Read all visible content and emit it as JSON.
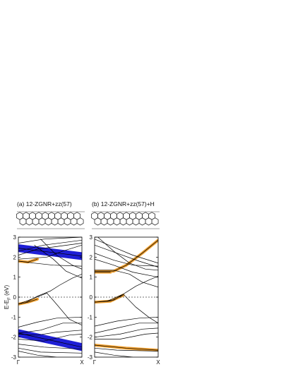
{
  "figure": {
    "panel_a_title": "(a) 12-ZGNR+zz(57)",
    "panel_b_title": "(b) 12-ZGNR+zz(57)+H",
    "ylabel": "E-E",
    "ylabel_sub": "F",
    "ylabel_unit": " (eV)",
    "colors": {
      "bands": "#000000",
      "highlight_blue": "#1f1fd6",
      "highlight_orange": "#f0a030",
      "fermi": "#444444"
    }
  },
  "chart_data": [
    {
      "type": "line",
      "title": "(a) 12-ZGNR+zz(57)",
      "ylim": [
        -3,
        3
      ],
      "yticks": [
        "3",
        "2",
        "1",
        "0",
        "-1",
        "-2",
        "-3"
      ],
      "xticks": [
        "Γ",
        "X"
      ],
      "fermi_level": 0,
      "series": [
        {
          "style": "blue",
          "values": [
            [
              0,
              2.45
            ],
            [
              0.5,
              2.25
            ],
            [
              1,
              2.05
            ]
          ]
        },
        {
          "style": "blue",
          "values": [
            [
              0,
              -1.8
            ],
            [
              0.5,
              -2.15
            ],
            [
              1,
              -2.5
            ]
          ]
        },
        {
          "style": "orange",
          "values": [
            [
              0,
              1.8
            ],
            [
              0.15,
              1.75
            ],
            [
              0.3,
              1.9
            ]
          ]
        },
        {
          "style": "orange",
          "values": [
            [
              0,
              -0.35
            ],
            [
              0.15,
              -0.25
            ],
            [
              0.3,
              -0.1
            ]
          ]
        },
        {
          "values": [
            [
              0,
              2.7
            ],
            [
              0.4,
              2.9
            ],
            [
              1,
              3.0
            ]
          ]
        },
        {
          "values": [
            [
              0,
              2.3
            ],
            [
              0.4,
              2.6
            ],
            [
              1,
              2.85
            ]
          ]
        },
        {
          "values": [
            [
              0,
              2.1
            ],
            [
              0.3,
              2.4
            ],
            [
              1,
              2.7
            ]
          ]
        },
        {
          "values": [
            [
              0,
              1.8
            ],
            [
              0.25,
              1.7
            ],
            [
              0.55,
              1.6
            ],
            [
              1,
              1.55
            ]
          ]
        },
        {
          "values": [
            [
              0,
              1.9
            ],
            [
              0.45,
              2.0
            ],
            [
              0.7,
              2.3
            ],
            [
              1,
              2.6
            ]
          ]
        },
        {
          "values": [
            [
              0.25,
              2.6
            ],
            [
              0.55,
              1.9
            ],
            [
              0.75,
              1.3
            ],
            [
              1,
              0.95
            ]
          ]
        },
        {
          "values": [
            [
              0.35,
              2.9
            ],
            [
              0.6,
              2.1
            ],
            [
              0.85,
              1.6
            ],
            [
              1,
              1.4
            ]
          ]
        },
        {
          "values": [
            [
              0,
              -0.35
            ],
            [
              0.25,
              -0.05
            ],
            [
              0.45,
              0.2
            ],
            [
              0.6,
              -0.35
            ],
            [
              0.8,
              -1.1
            ],
            [
              1,
              -1.4
            ]
          ]
        },
        {
          "values": [
            [
              0.1,
              -0.3
            ],
            [
              0.3,
              0.05
            ],
            [
              0.5,
              0.3
            ],
            [
              0.65,
              0.6
            ],
            [
              0.85,
              0.95
            ],
            [
              1,
              1.15
            ]
          ]
        },
        {
          "values": [
            [
              0,
              -1.5
            ],
            [
              0.3,
              -1.25
            ],
            [
              0.6,
              -1.05
            ],
            [
              1,
              -1.0
            ]
          ]
        },
        {
          "values": [
            [
              0,
              -1.8
            ],
            [
              0.35,
              -1.65
            ],
            [
              0.7,
              -1.3
            ],
            [
              1,
              -1.3
            ]
          ]
        },
        {
          "values": [
            [
              0,
              -1.85
            ],
            [
              0.3,
              -1.9
            ],
            [
              0.6,
              -1.75
            ],
            [
              1,
              -1.65
            ]
          ]
        },
        {
          "values": [
            [
              0,
              -2.1
            ],
            [
              0.4,
              -2.2
            ],
            [
              0.8,
              -1.9
            ],
            [
              1,
              -1.85
            ]
          ]
        },
        {
          "values": [
            [
              0,
              -2.35
            ],
            [
              0.4,
              -2.5
            ],
            [
              1,
              -2.6
            ]
          ]
        },
        {
          "values": [
            [
              0,
              -2.55
            ],
            [
              0.35,
              -2.75
            ],
            [
              1,
              -2.8
            ]
          ]
        },
        {
          "values": [
            [
              0,
              -2.7
            ],
            [
              0.3,
              -2.9
            ],
            [
              0.6,
              -3.0
            ]
          ]
        }
      ]
    },
    {
      "type": "line",
      "title": "(b) 12-ZGNR+zz(57)+H",
      "ylim": [
        -3,
        3
      ],
      "yticks": [
        "3",
        "2",
        "1",
        "0",
        "-1",
        "-2",
        "-3"
      ],
      "xticks": [
        "Γ",
        "X"
      ],
      "fermi_level": 0,
      "series": [
        {
          "style": "orange",
          "values": [
            [
              0,
              1.3
            ],
            [
              0.3,
              1.3
            ],
            [
              0.5,
              1.6
            ],
            [
              0.75,
              2.2
            ],
            [
              1,
              2.85
            ]
          ]
        },
        {
          "style": "orange",
          "values": [
            [
              0,
              1.25
            ],
            [
              0.25,
              1.25
            ]
          ]
        },
        {
          "style": "orange",
          "values": [
            [
              0,
              -0.25
            ],
            [
              0.25,
              -0.2
            ],
            [
              0.45,
              0.1
            ]
          ]
        },
        {
          "style": "orange",
          "values": [
            [
              0,
              -2.4
            ],
            [
              0.5,
              -2.55
            ],
            [
              1,
              -2.65
            ]
          ]
        },
        {
          "values": [
            [
              0,
              2.9
            ],
            [
              0.3,
              2.5
            ],
            [
              0.6,
              2.1
            ],
            [
              1,
              1.7
            ]
          ]
        },
        {
          "values": [
            [
              0,
              2.6
            ],
            [
              0.35,
              2.2
            ],
            [
              0.7,
              1.8
            ],
            [
              1,
              1.5
            ]
          ]
        },
        {
          "values": [
            [
              0,
              2.2
            ],
            [
              0.3,
              1.85
            ],
            [
              0.6,
              1.6
            ],
            [
              1,
              1.55
            ]
          ]
        },
        {
          "values": [
            [
              0,
              1.9
            ],
            [
              0.3,
              1.6
            ],
            [
              0.6,
              1.25
            ],
            [
              1,
              1.0
            ]
          ]
        },
        {
          "values": [
            [
              0.05,
              3.0
            ],
            [
              0.3,
              2.3
            ],
            [
              0.55,
              1.7
            ],
            [
              0.8,
              1.4
            ],
            [
              1,
              1.35
            ]
          ]
        },
        {
          "values": [
            [
              0,
              1.35
            ],
            [
              0.3,
              1.35
            ],
            [
              0.55,
              1.15
            ],
            [
              0.75,
              0.75
            ],
            [
              1,
              0.5
            ]
          ]
        },
        {
          "values": [
            [
              0,
              -0.25
            ],
            [
              0.3,
              -0.15
            ],
            [
              0.45,
              0.15
            ],
            [
              0.65,
              -0.5
            ],
            [
              0.85,
              -1.0
            ],
            [
              1,
              -1.3
            ]
          ]
        },
        {
          "values": [
            [
              0.2,
              -0.2
            ],
            [
              0.45,
              0.15
            ],
            [
              0.65,
              0.55
            ],
            [
              0.85,
              0.85
            ],
            [
              1,
              1.05
            ]
          ]
        },
        {
          "values": [
            [
              0,
              -1.45
            ],
            [
              0.35,
              -1.2
            ],
            [
              0.7,
              -1.05
            ],
            [
              1,
              -1.0
            ]
          ]
        },
        {
          "values": [
            [
              0,
              -1.8
            ],
            [
              0.35,
              -1.55
            ],
            [
              0.7,
              -1.3
            ],
            [
              1,
              -1.3
            ]
          ]
        },
        {
          "values": [
            [
              0,
              -2.0
            ],
            [
              0.4,
              -1.85
            ],
            [
              0.75,
              -1.6
            ],
            [
              1,
              -1.55
            ]
          ]
        },
        {
          "values": [
            [
              0,
              -2.1
            ],
            [
              0.4,
              -2.1
            ],
            [
              0.8,
              -1.85
            ],
            [
              1,
              -1.8
            ]
          ]
        },
        {
          "values": [
            [
              0,
              -2.55
            ],
            [
              0.35,
              -2.65
            ],
            [
              1,
              -2.7
            ]
          ]
        },
        {
          "values": [
            [
              0,
              -2.75
            ],
            [
              0.3,
              -2.9
            ],
            [
              0.6,
              -3.0
            ]
          ]
        }
      ]
    }
  ]
}
